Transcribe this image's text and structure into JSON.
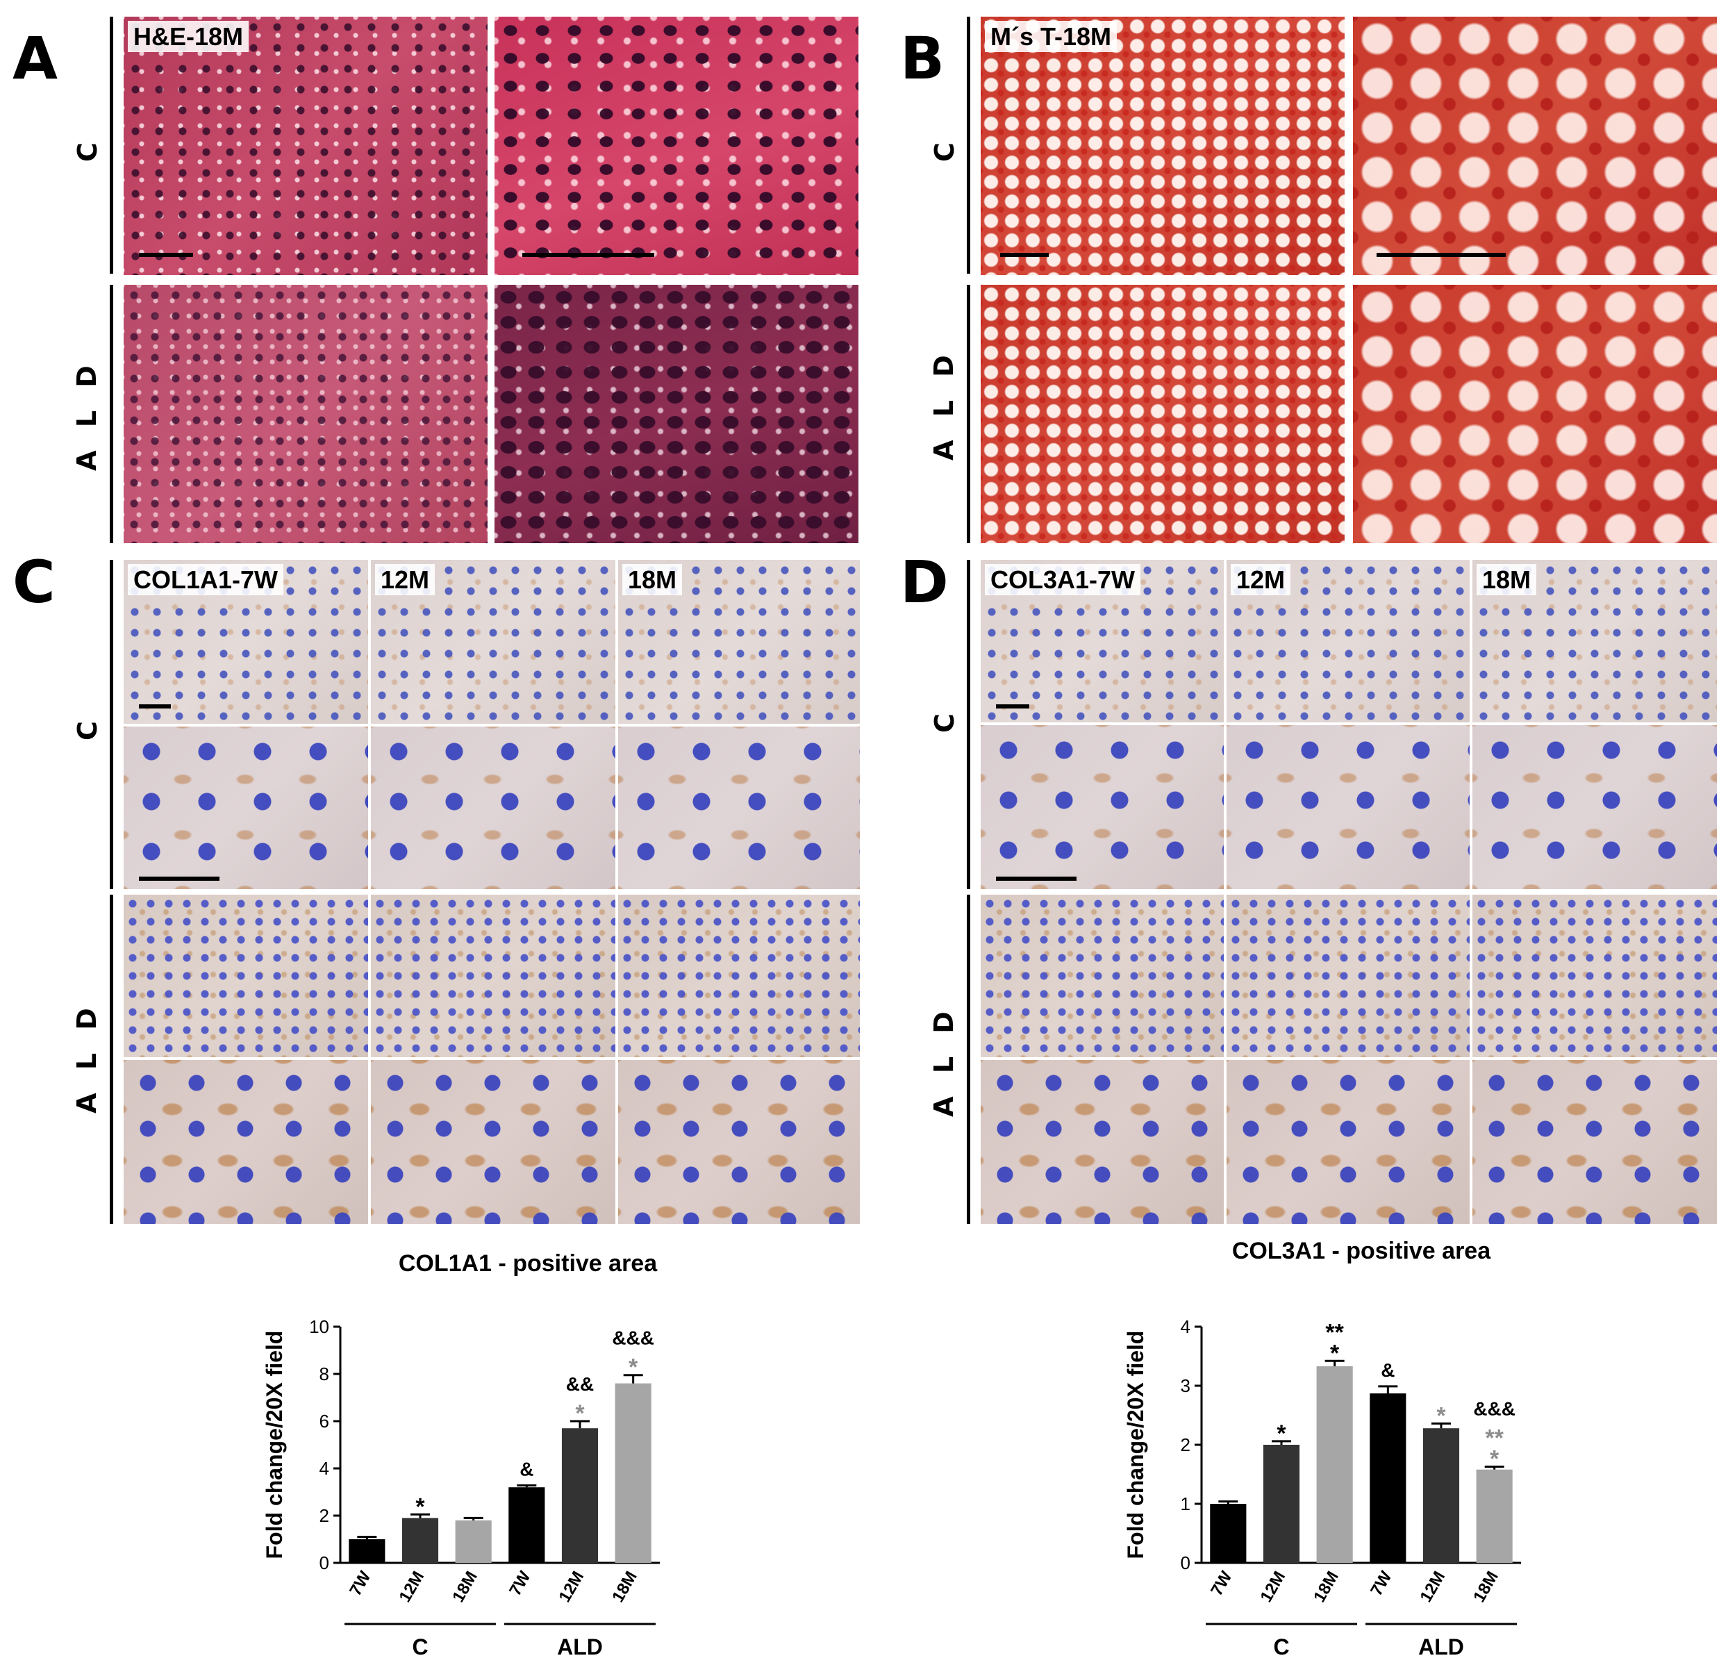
{
  "panels": {
    "a": {
      "letter": "A",
      "tag": "H&E-18M",
      "rows": [
        "C",
        "A L D"
      ]
    },
    "b": {
      "letter": "B",
      "tag": "M´s T-18M",
      "rows": [
        "C",
        "A L D"
      ]
    },
    "c": {
      "letter": "C",
      "tags": [
        "COL1A1-7W",
        "12M",
        "18M"
      ],
      "rows": [
        "C",
        "A L D"
      ]
    },
    "d": {
      "letter": "D",
      "tags": [
        "COL3A1-7W",
        "12M",
        "18M"
      ],
      "rows": [
        "C",
        "A L D"
      ]
    }
  },
  "colors": {
    "black": "#000000",
    "dark_gray": "#333333",
    "light_gray": "#a6a6a6"
  },
  "chart_data": [
    {
      "type": "bar",
      "title": "COL1A1 - positive area",
      "ylabel": "Fold change/20X field",
      "ylim": [
        0,
        10
      ],
      "yticks": [
        "0",
        "2",
        "4",
        "6",
        "8",
        "10"
      ],
      "categories": [
        "7W",
        "12M",
        "18M",
        "7W",
        "12M",
        "18M"
      ],
      "groups": [
        {
          "label": "C",
          "bars": [
            0,
            1,
            2
          ]
        },
        {
          "label": "ALD",
          "bars": [
            3,
            4,
            5
          ]
        }
      ],
      "values": [
        1.0,
        1.9,
        1.8,
        3.2,
        5.7,
        7.6
      ],
      "errors": [
        0.1,
        0.15,
        0.1,
        0.08,
        0.3,
        0.35
      ],
      "bar_colors": [
        "#000000",
        "#333333",
        "#a6a6a6",
        "#000000",
        "#333333",
        "#a6a6a6"
      ],
      "annotations": [
        [],
        [
          {
            "text": "*",
            "color": "#000000"
          }
        ],
        [],
        [
          {
            "text": "&",
            "color": "#000000"
          }
        ],
        [
          {
            "text": "&&",
            "color": "#000000"
          },
          {
            "text": "*",
            "color": "#8c8c8c"
          }
        ],
        [
          {
            "text": "&&&",
            "color": "#000000"
          },
          {
            "text": "*",
            "color": "#8c8c8c"
          }
        ]
      ]
    },
    {
      "type": "bar",
      "title": "COL3A1 - positive area",
      "ylabel": "Fold change/20X field",
      "ylim": [
        0,
        4
      ],
      "yticks": [
        "0",
        "1",
        "2",
        "3",
        "4"
      ],
      "categories": [
        "7W",
        "12M",
        "18M",
        "7W",
        "12M",
        "18M"
      ],
      "groups": [
        {
          "label": "C",
          "bars": [
            0,
            1,
            2
          ]
        },
        {
          "label": "ALD",
          "bars": [
            3,
            4,
            5
          ]
        }
      ],
      "values": [
        1.0,
        2.0,
        3.33,
        2.87,
        2.28,
        1.58
      ],
      "errors": [
        0.04,
        0.06,
        0.09,
        0.12,
        0.08,
        0.05
      ],
      "bar_colors": [
        "#000000",
        "#333333",
        "#a6a6a6",
        "#000000",
        "#333333",
        "#a6a6a6"
      ],
      "annotations": [
        [],
        [
          {
            "text": "*",
            "color": "#000000"
          }
        ],
        [
          {
            "text": "**",
            "color": "#000000"
          },
          {
            "text": "*",
            "color": "#000000"
          }
        ],
        [
          {
            "text": "&",
            "color": "#000000"
          }
        ],
        [
          {
            "text": "*",
            "color": "#8c8c8c"
          }
        ],
        [
          {
            "text": "&&&",
            "color": "#000000"
          },
          {
            "text": "**",
            "color": "#8c8c8c"
          },
          {
            "text": "*",
            "color": "#8c8c8c"
          }
        ]
      ]
    }
  ]
}
